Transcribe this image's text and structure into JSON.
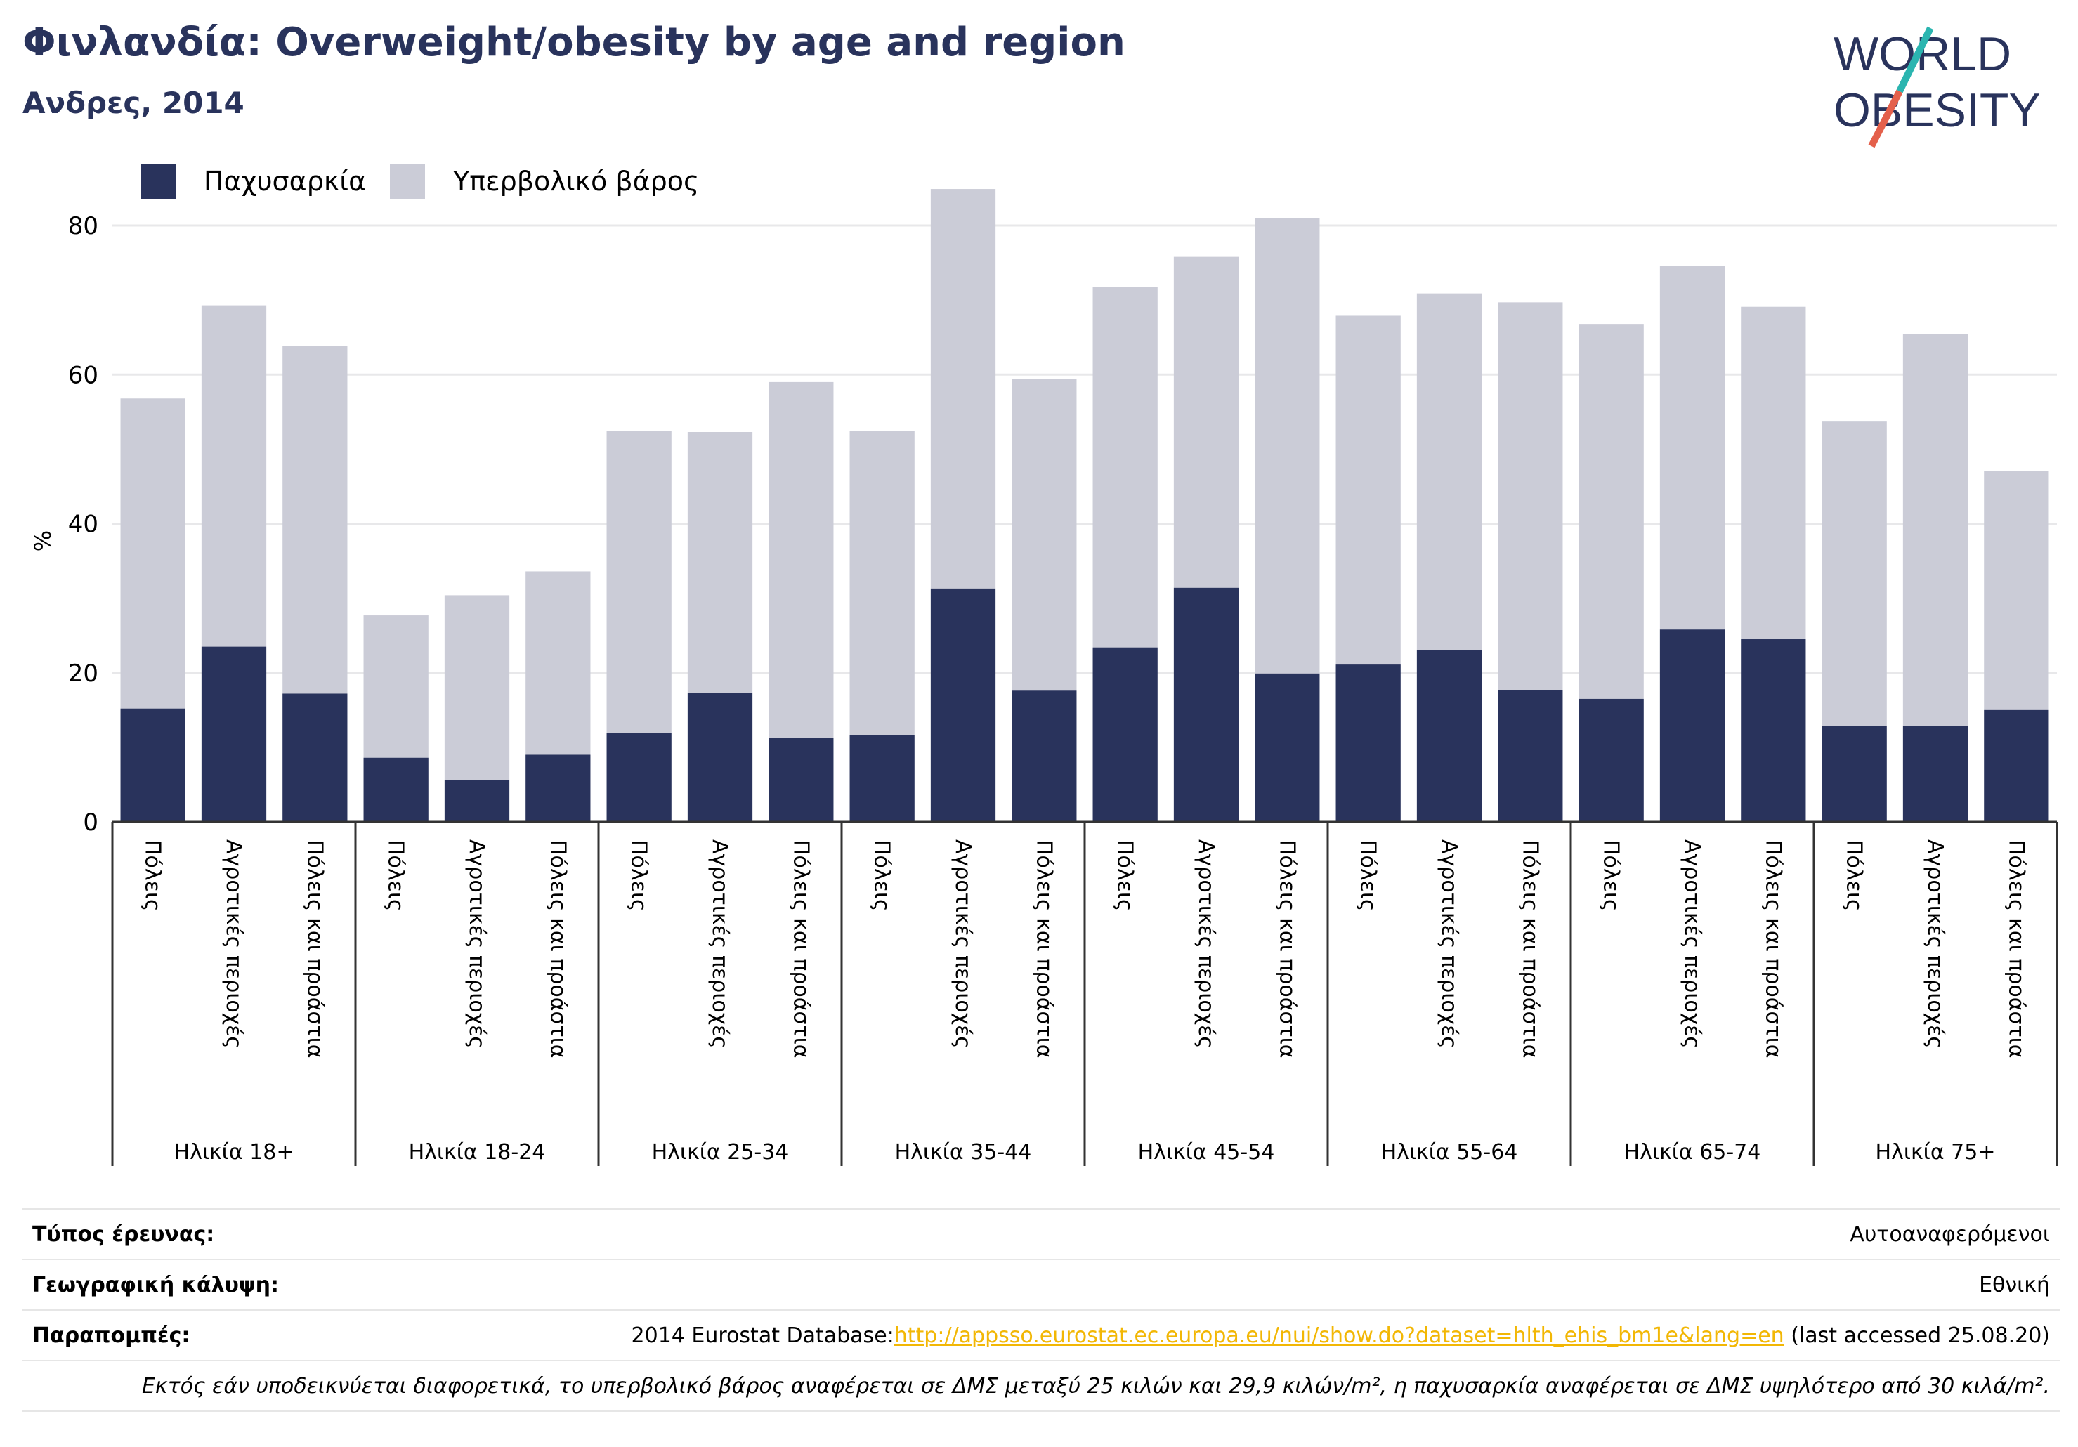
{
  "title": "Φινλανδία: Overweight/obesity by age and region",
  "subtitle": "Ανδρες, 2014",
  "logo": {
    "line1": "WORLD",
    "line2": "OBESITY"
  },
  "colors": {
    "obesity": "#29335c",
    "overweight": "#cbccd7",
    "accent_teal": "#2bb5b0",
    "accent_red": "#e4604b",
    "link": "#f2b705"
  },
  "chart_data": {
    "type": "bar",
    "stacked": true,
    "title": "",
    "ylabel": "%",
    "xlabel": "",
    "ylim": [
      0,
      88
    ],
    "yticks": [
      0,
      20,
      40,
      60,
      80
    ],
    "grid": true,
    "legend_position": "top-left",
    "groups": [
      {
        "label": "Ηλικία 18+",
        "categories": [
          "Πόλεις",
          "Αγροτικές περιοχές",
          "Πόλεις και προάστια"
        ]
      },
      {
        "label": "Ηλικία 18-24",
        "categories": [
          "Πόλεις",
          "Αγροτικές περιοχές",
          "Πόλεις και προάστια"
        ]
      },
      {
        "label": "Ηλικία 25-34",
        "categories": [
          "Πόλεις",
          "Αγροτικές περιοχές",
          "Πόλεις και προάστια"
        ]
      },
      {
        "label": "Ηλικία 35-44",
        "categories": [
          "Πόλεις",
          "Αγροτικές περιοχές",
          "Πόλεις και προάστια"
        ]
      },
      {
        "label": "Ηλικία 45-54",
        "categories": [
          "Πόλεις",
          "Αγροτικές περιοχές",
          "Πόλεις και προάστια"
        ]
      },
      {
        "label": "Ηλικία 55-64",
        "categories": [
          "Πόλεις",
          "Αγροτικές περιοχές",
          "Πόλεις και προάστια"
        ]
      },
      {
        "label": "Ηλικία 65-74",
        "categories": [
          "Πόλεις",
          "Αγροτικές περιοχές",
          "Πόλεις και προάστια"
        ]
      },
      {
        "label": "Ηλικία 75+",
        "categories": [
          "Πόλεις",
          "Αγροτικές περιοχές",
          "Πόλεις και προάστια"
        ]
      }
    ],
    "series": [
      {
        "name": "Παχυσαρκία",
        "color": "#29335c",
        "values": [
          15.2,
          23.5,
          17.2,
          8.6,
          5.6,
          9.0,
          11.9,
          17.3,
          11.3,
          11.6,
          31.3,
          17.6,
          23.4,
          31.4,
          19.9,
          21.1,
          23.0,
          17.7,
          16.5,
          25.8,
          24.5,
          12.9,
          12.9,
          15.0
        ]
      },
      {
        "name": "Υπερβολικό βάρος",
        "color": "#cbccd7",
        "values": [
          41.6,
          45.8,
          46.6,
          19.1,
          24.8,
          24.6,
          40.5,
          35.0,
          47.7,
          40.8,
          53.6,
          41.8,
          48.4,
          44.4,
          61.1,
          46.8,
          47.9,
          52.0,
          50.3,
          48.8,
          44.6,
          40.8,
          52.5,
          32.1
        ]
      }
    ]
  },
  "info": {
    "survey_type_label": "Τύπος έρευνας:",
    "survey_type_value": "Αυτοαναφερόμενοι",
    "coverage_label": "Γεωγραφική κάλυψη:",
    "coverage_value": "Εθνική",
    "references_label": "Παραπομπές:",
    "references_prefix": "2014 Eurostat Database:",
    "references_link": "http://appsso.eurostat.ec.europa.eu/nui/show.do?dataset=hlth_ehis_bm1e&lang=en",
    "references_suffix": " (last accessed 25.08.20)",
    "note": "Εκτός εάν υποδεικνύεται διαφορετικά, το υπερβολικό βάρος αναφέρεται σε ΔΜΣ μεταξύ 25 κιλών και 29,9 κιλών/m², η παχυσαρκία αναφέρεται σε ΔΜΣ υψηλότερο από 30 κιλά/m²."
  }
}
